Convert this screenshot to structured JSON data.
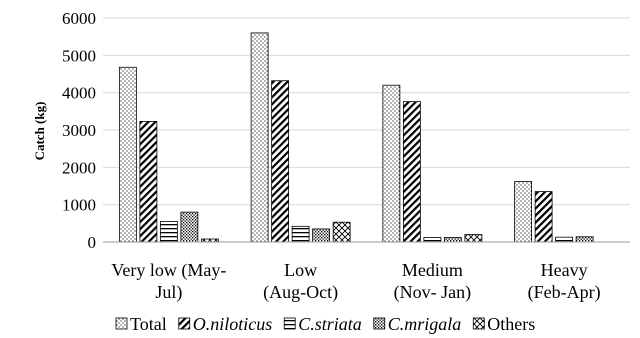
{
  "chart_data": {
    "type": "bar",
    "title": "",
    "xlabel": "",
    "ylabel": "Catch (kg)",
    "ylim": [
      0,
      6000
    ],
    "yticks": [
      0,
      1000,
      2000,
      3000,
      4000,
      5000,
      6000
    ],
    "grid": "horizontal",
    "legend_position": "bottom",
    "categories": [
      [
        "Very low (May-",
        "Jul)"
      ],
      [
        "Low",
        "(Aug-Oct)"
      ],
      [
        "Medium",
        "(Nov- Jan)"
      ],
      [
        "Heavy",
        "(Feb-Apr)"
      ]
    ],
    "series": [
      {
        "name": "Total",
        "pattern": "dots",
        "italic": false,
        "values": [
          4680,
          5600,
          4200,
          1620
        ]
      },
      {
        "name": "O.niloticus",
        "pattern": "diagonal",
        "italic": true,
        "values": [
          3230,
          4320,
          3760,
          1350
        ]
      },
      {
        "name": "C.striata",
        "pattern": "horizontal",
        "italic": true,
        "values": [
          550,
          420,
          120,
          130
        ]
      },
      {
        "name": "C.mrigala",
        "pattern": "dense-dots",
        "italic": true,
        "values": [
          800,
          350,
          120,
          140
        ]
      },
      {
        "name": "Others",
        "pattern": "crosshatch",
        "italic": false,
        "values": [
          80,
          530,
          200,
          0
        ]
      }
    ]
  }
}
